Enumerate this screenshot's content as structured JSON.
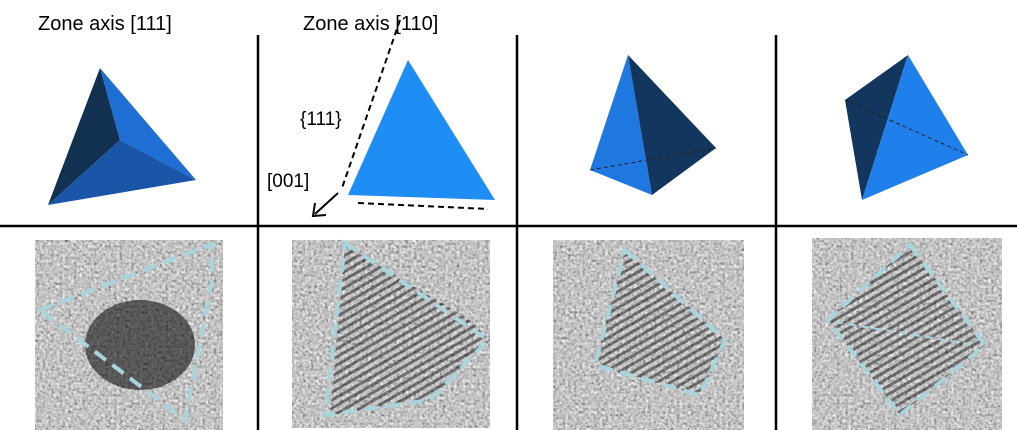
{
  "panels": [
    {
      "title": "Zone axis [111]"
    },
    {
      "title": "Zone axis [110]",
      "labels": [
        "{111}",
        "[001]"
      ]
    },
    {},
    {}
  ]
}
